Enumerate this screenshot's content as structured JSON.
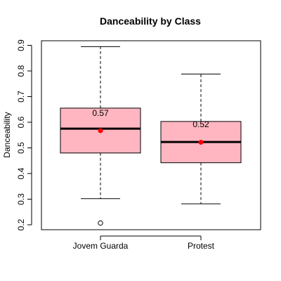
{
  "chart_data": {
    "type": "box",
    "title": "Danceability by Class",
    "xlabel": "",
    "ylabel": "Danceability",
    "ylim": [
      0.2,
      0.9
    ],
    "yticks": [
      "0.2",
      "0.3",
      "0.4",
      "0.5",
      "0.6",
      "0.7",
      "0.8",
      "0.9"
    ],
    "categories": [
      "Jovem Guarda",
      "Protest"
    ],
    "boxes": [
      {
        "category": "Jovem Guarda",
        "whisker_low": 0.302,
        "q1": 0.48,
        "median": 0.575,
        "q3": 0.655,
        "whisker_high": 0.895,
        "mean": 0.567,
        "mean_label": "0.57",
        "outliers": [
          0.207
        ]
      },
      {
        "category": "Protest",
        "whisker_low": 0.282,
        "q1": 0.442,
        "median": 0.523,
        "q3": 0.603,
        "whisker_high": 0.788,
        "mean": 0.522,
        "mean_label": "0.52",
        "outliers": []
      }
    ],
    "colors": {
      "box_fill": "#FFB6C1",
      "mean_point": "#FF0000",
      "median_line": "#000000"
    }
  }
}
